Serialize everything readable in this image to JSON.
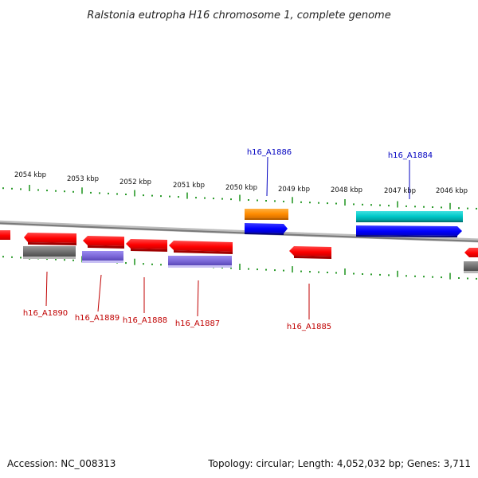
{
  "title": "Ralstonia eutropha H16 chromosome 1, complete genome",
  "footer": {
    "accession": "Accession: NC_008313",
    "summary": "Topology: circular; Length: 4,052,032 bp; Genes: 3,711"
  },
  "colors": {
    "reverse_gene": "#ff0000",
    "forward_gene": "#0000ff",
    "orange_feature": "#ff8c00",
    "cyan_feature": "#00c8c8",
    "gray_feature": "#6f6f6f",
    "purple_feature": "#7b68d8",
    "backbone": "#8a8a8a",
    "tick": "#2a9a2a",
    "forward_label": "#0000c0",
    "reverse_label": "#c00000"
  },
  "kbp_labels": [
    "2054 kbp",
    "2053 kbp",
    "2052 kbp",
    "2051 kbp",
    "2050 kbp",
    "2049 kbp",
    "2048 kbp",
    "2047 kbp",
    "2046 kbp"
  ],
  "gene_labels": {
    "forward": [
      "h16_A1886",
      "h16_A1884"
    ],
    "reverse": [
      "h16_A1890",
      "h16_A1889",
      "h16_A1888",
      "h16_A1887",
      "h16_A1885"
    ]
  }
}
